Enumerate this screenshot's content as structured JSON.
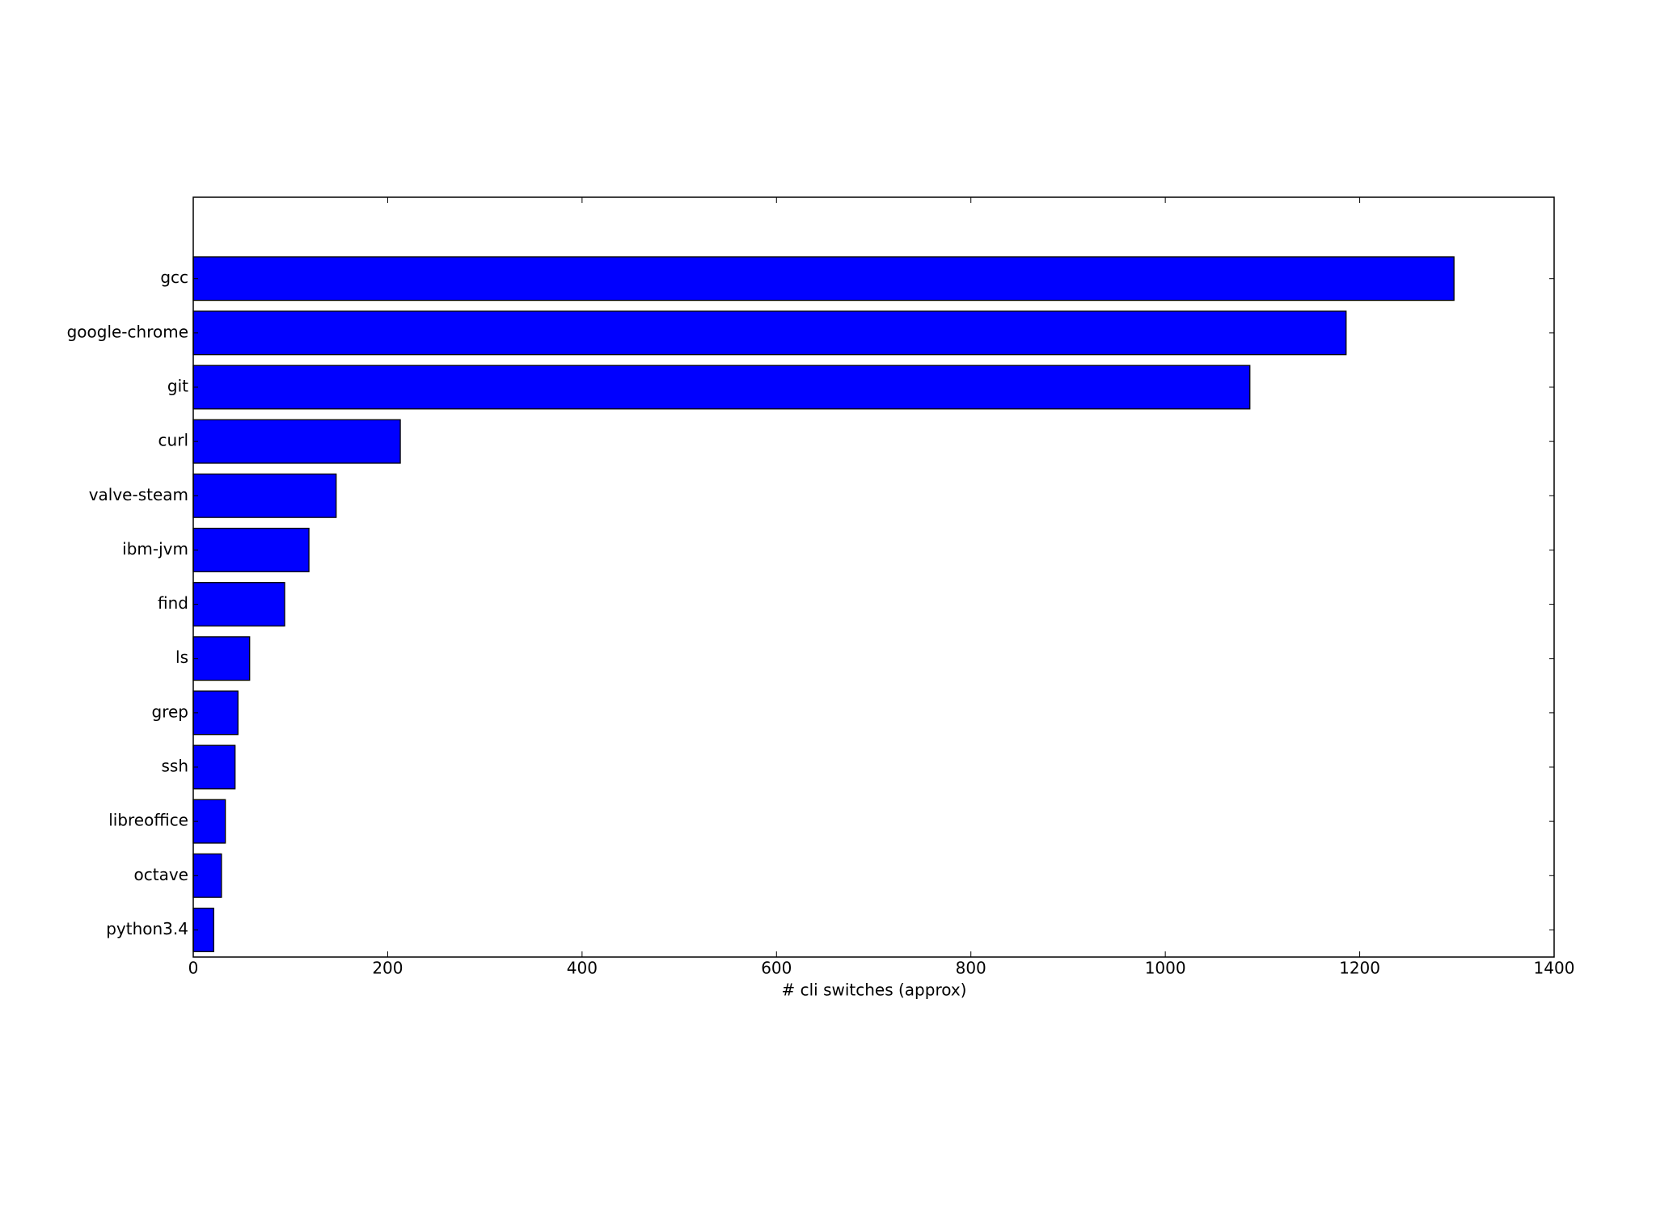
{
  "chart_data": {
    "type": "barh",
    "xlabel": "# cli switches (approx)",
    "categories": [
      "gcc",
      "google-chrome",
      "git",
      "curl",
      "valve-steam",
      "ibm-jvm",
      "find",
      "ls",
      "grep",
      "ssh",
      "libreoffice",
      "octave",
      "python3.4"
    ],
    "values": [
      1297,
      1186,
      1087,
      213,
      147,
      119,
      94,
      58,
      46,
      43,
      33,
      29,
      21
    ],
    "color": "#0000ff",
    "xlim": [
      0,
      1400
    ],
    "xticks": [
      0,
      200,
      400,
      600,
      800,
      1000,
      1200,
      1400
    ],
    "grid": false
  }
}
